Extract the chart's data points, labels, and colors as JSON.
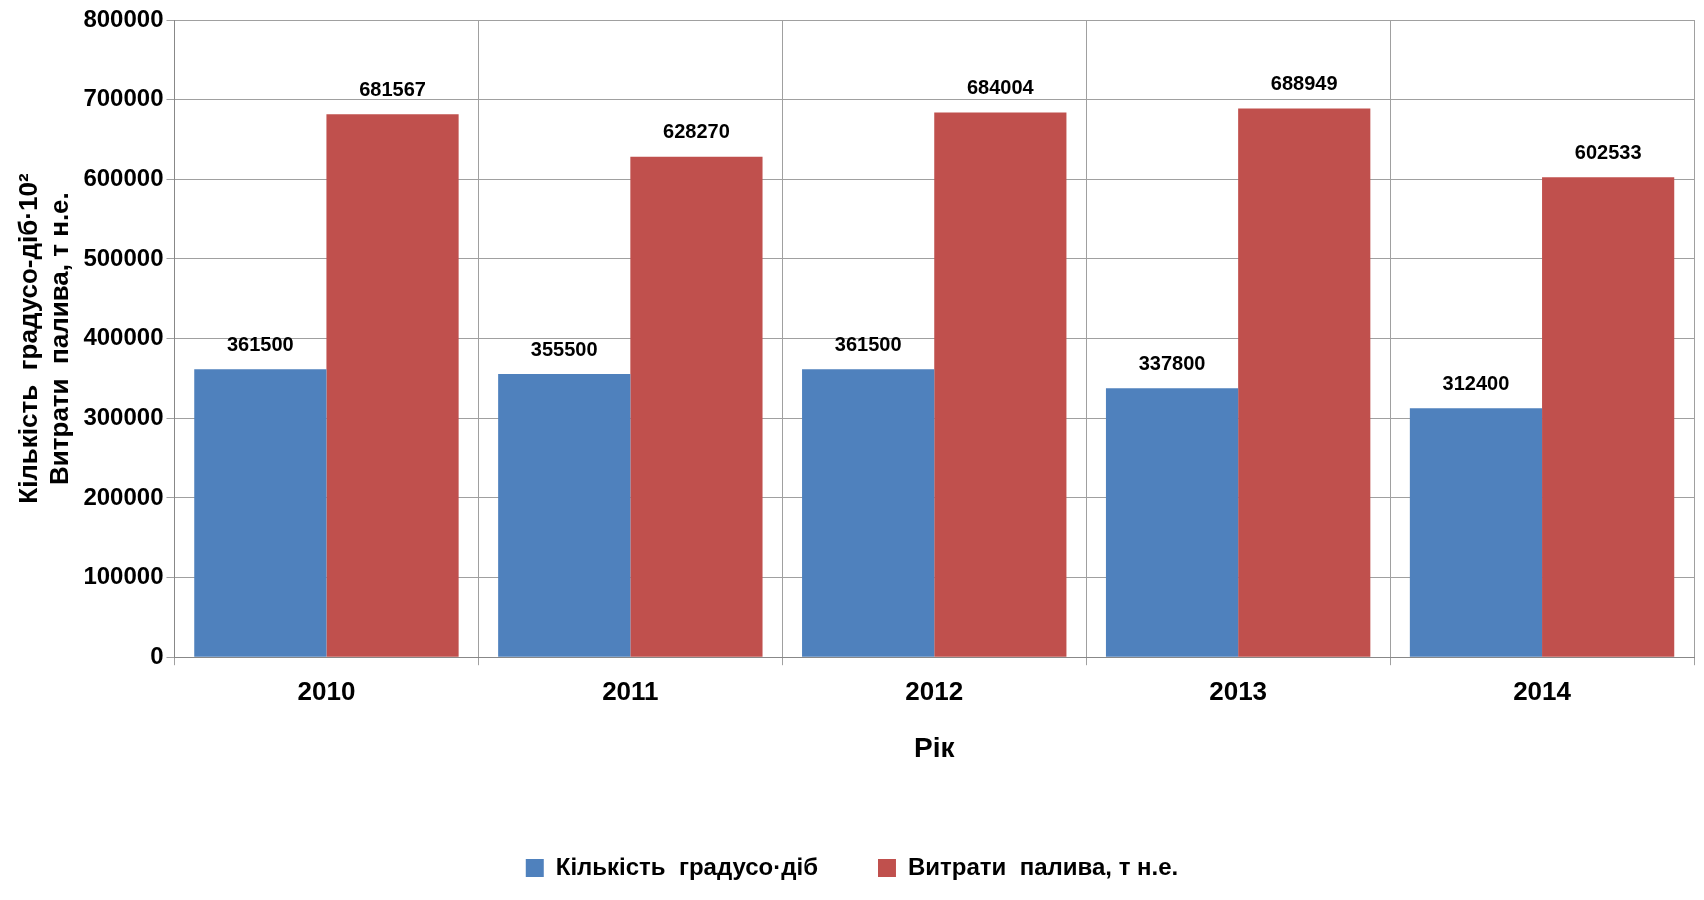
{
  "chart_data": {
    "type": "bar",
    "xlabel": "Рік",
    "ylabel": "Кількість  градусо-діб·10²\nВитрати  палива, т н.е.",
    "categories": [
      "2010",
      "2011",
      "2012",
      "2013",
      "2014"
    ],
    "series": [
      {
        "name": "Кількість  градусо·діб",
        "color": "#4f81bd",
        "values": [
          361500,
          355500,
          361500,
          337800,
          312400
        ]
      },
      {
        "name": "Витрати  палива, т н.е.",
        "color": "#c0504d",
        "values": [
          681567,
          628270,
          684004,
          688949,
          602533
        ]
      }
    ],
    "ylim": [
      0,
      800000
    ],
    "yticks": [
      0,
      100000,
      200000,
      300000,
      400000,
      500000,
      600000,
      700000,
      800000
    ],
    "grid": true,
    "legend": "bottom",
    "data_labels": true
  }
}
